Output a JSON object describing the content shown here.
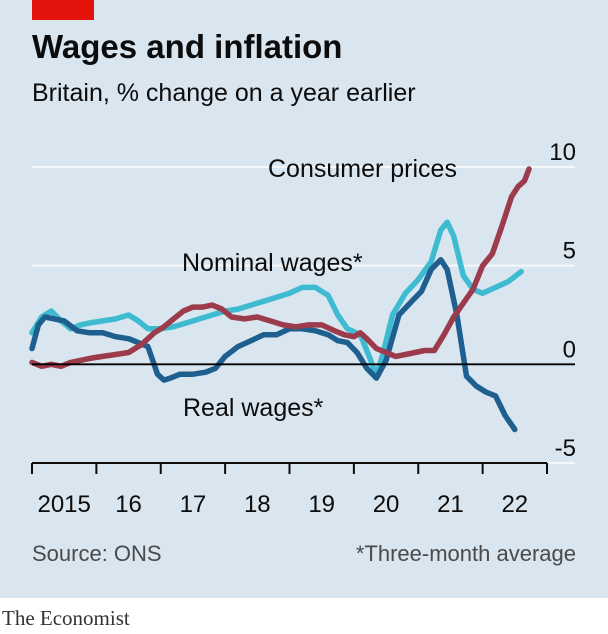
{
  "header": {
    "title": "Wages and inflation",
    "subtitle": "Britain, % change on a year earlier"
  },
  "footer": {
    "source": "Source: ONS",
    "footnote": "*Three-month average",
    "brand": "The Economist"
  },
  "colors": {
    "background": "#d9e5ef",
    "accent_tag": "#e3120b",
    "consumer_prices": "#9b3b4b",
    "nominal_wages": "#3ebbd1",
    "real_wages": "#1f5f8f",
    "gridline": "#f4f8fb",
    "zero_line": "#000000"
  },
  "chart_data": {
    "type": "line",
    "title": "Wages and inflation",
    "subtitle": "Britain, % change on a year earlier",
    "xlabel": "",
    "ylabel": "",
    "xlim": [
      2015.0,
      2023.0
    ],
    "ylim": [
      -5,
      10
    ],
    "y_ticks": [
      10,
      5,
      0,
      -5
    ],
    "y_tick_labels": [
      "10",
      "5",
      "0",
      "-5"
    ],
    "x_ticks": [
      2015,
      2016,
      2017,
      2018,
      2019,
      2020,
      2021,
      2022,
      2023
    ],
    "x_tick_labels": [
      {
        "at": 2015.5,
        "label": "2015"
      },
      {
        "at": 2016.5,
        "label": "16"
      },
      {
        "at": 2017.5,
        "label": "17"
      },
      {
        "at": 2018.5,
        "label": "18"
      },
      {
        "at": 2019.5,
        "label": "19"
      },
      {
        "at": 2020.5,
        "label": "20"
      },
      {
        "at": 2021.5,
        "label": "21"
      },
      {
        "at": 2022.5,
        "label": "22"
      }
    ],
    "grid": true,
    "legend": "inline labels",
    "annotations": [
      {
        "series": "Consumer prices",
        "text": "Consumer prices"
      },
      {
        "series": "Nominal wages",
        "text": "Nominal wages*"
      },
      {
        "series": "Real wages",
        "text": "Real wages*"
      }
    ],
    "series": [
      {
        "name": "Nominal wages",
        "x": [
          2015.0,
          2015.15,
          2015.3,
          2015.45,
          2015.6,
          2015.75,
          2015.9,
          2016.1,
          2016.3,
          2016.5,
          2016.65,
          2016.8,
          2017.0,
          2017.2,
          2017.4,
          2017.6,
          2017.8,
          2018.0,
          2018.2,
          2018.4,
          2018.6,
          2018.8,
          2019.0,
          2019.2,
          2019.4,
          2019.6,
          2019.75,
          2019.9,
          2020.1,
          2020.25,
          2020.35,
          2020.45,
          2020.6,
          2020.8,
          2021.0,
          2021.2,
          2021.35,
          2021.45,
          2021.55,
          2021.7,
          2021.85,
          2022.0,
          2022.2,
          2022.4,
          2022.6
        ],
        "y": [
          1.6,
          2.4,
          2.7,
          2.2,
          1.8,
          2.0,
          2.1,
          2.2,
          2.3,
          2.5,
          2.2,
          1.8,
          1.8,
          1.9,
          2.1,
          2.3,
          2.5,
          2.7,
          2.8,
          3.0,
          3.2,
          3.4,
          3.6,
          3.9,
          3.9,
          3.5,
          2.5,
          1.8,
          1.5,
          0.3,
          -0.6,
          0.5,
          2.5,
          3.6,
          4.3,
          5.2,
          6.8,
          7.2,
          6.5,
          4.5,
          3.8,
          3.6,
          3.9,
          4.2,
          4.7
        ]
      },
      {
        "name": "Real wages",
        "x": [
          2015.0,
          2015.1,
          2015.2,
          2015.35,
          2015.5,
          2015.7,
          2015.9,
          2016.1,
          2016.3,
          2016.5,
          2016.65,
          2016.8,
          2016.95,
          2017.05,
          2017.15,
          2017.3,
          2017.5,
          2017.7,
          2017.85,
          2018.0,
          2018.2,
          2018.4,
          2018.6,
          2018.8,
          2019.0,
          2019.2,
          2019.4,
          2019.6,
          2019.75,
          2019.9,
          2020.05,
          2020.2,
          2020.35,
          2020.5,
          2020.7,
          2020.9,
          2021.05,
          2021.2,
          2021.35,
          2021.45,
          2021.6,
          2021.75,
          2021.9,
          2022.05,
          2022.2,
          2022.35,
          2022.5
        ],
        "y": [
          0.8,
          2.0,
          2.4,
          2.3,
          2.2,
          1.7,
          1.6,
          1.6,
          1.4,
          1.3,
          1.1,
          0.9,
          -0.5,
          -0.8,
          -0.7,
          -0.5,
          -0.5,
          -0.4,
          -0.2,
          0.4,
          0.9,
          1.2,
          1.5,
          1.5,
          1.8,
          1.8,
          1.7,
          1.5,
          1.2,
          1.1,
          0.6,
          -0.2,
          -0.7,
          0.2,
          2.5,
          3.2,
          3.7,
          4.8,
          5.3,
          4.8,
          2.5,
          -0.6,
          -1.1,
          -1.4,
          -1.6,
          -2.6,
          -3.3
        ]
      },
      {
        "name": "Consumer prices",
        "x": [
          2015.0,
          2015.15,
          2015.3,
          2015.45,
          2015.6,
          2015.75,
          2015.9,
          2016.1,
          2016.3,
          2016.5,
          2016.7,
          2016.9,
          2017.05,
          2017.2,
          2017.35,
          2017.5,
          2017.65,
          2017.8,
          2017.95,
          2018.1,
          2018.3,
          2018.5,
          2018.7,
          2018.9,
          2019.1,
          2019.3,
          2019.5,
          2019.7,
          2019.85,
          2020.0,
          2020.1,
          2020.2,
          2020.35,
          2020.5,
          2020.65,
          2020.8,
          2020.95,
          2021.1,
          2021.25,
          2021.4,
          2021.55,
          2021.7,
          2021.85,
          2022.0,
          2022.15,
          2022.3,
          2022.45,
          2022.55,
          2022.65,
          2022.72
        ],
        "y": [
          0.1,
          -0.1,
          0.0,
          -0.1,
          0.1,
          0.2,
          0.3,
          0.4,
          0.5,
          0.6,
          1.0,
          1.6,
          1.9,
          2.3,
          2.7,
          2.9,
          2.9,
          3.0,
          2.8,
          2.4,
          2.3,
          2.4,
          2.2,
          2.0,
          1.9,
          2.0,
          2.0,
          1.7,
          1.5,
          1.4,
          1.6,
          1.3,
          0.8,
          0.6,
          0.4,
          0.5,
          0.6,
          0.7,
          0.7,
          1.5,
          2.4,
          3.1,
          3.8,
          5.0,
          5.6,
          7.0,
          8.5,
          9.0,
          9.3,
          9.9
        ]
      }
    ]
  }
}
